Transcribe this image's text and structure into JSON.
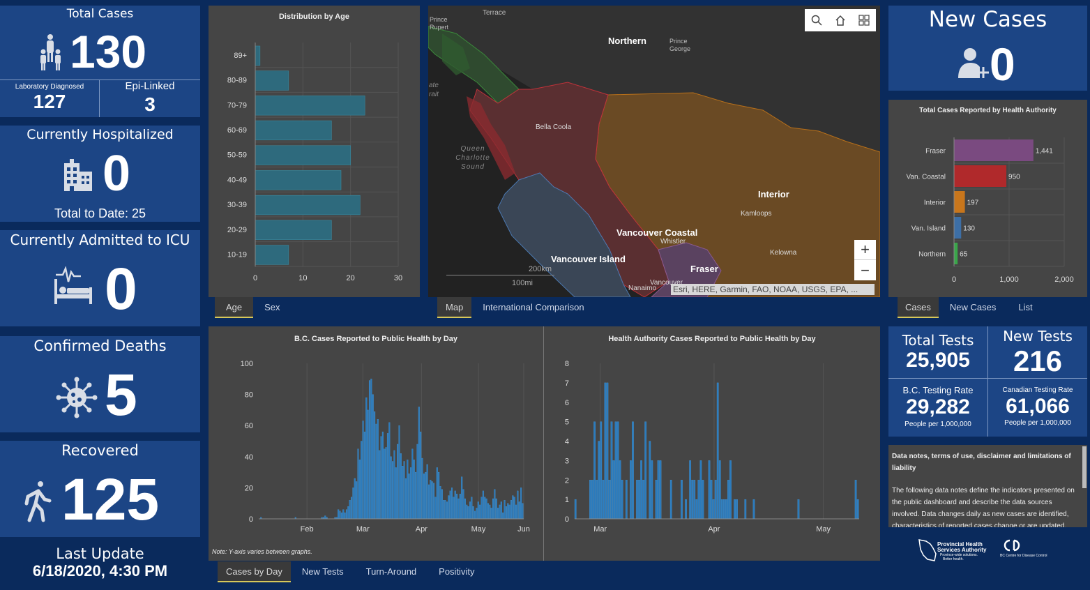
{
  "total_cases": {
    "title": "Total Cases",
    "value": "130",
    "lab_label": "Laboratory Diagnosed",
    "lab_value": "127",
    "epi_label": "Epi-Linked",
    "epi_value": "3"
  },
  "hospitalized": {
    "title": "Currently Hospitalized",
    "value": "0",
    "total_label": "Total to Date: 25"
  },
  "icu": {
    "title": "Currently Admitted to ICU",
    "value": "0"
  },
  "deaths": {
    "title": "Confirmed Deaths",
    "value": "5"
  },
  "recovered": {
    "title": "Recovered",
    "value": "125"
  },
  "last_update": {
    "label": "Last Update",
    "value": "6/18/2020, 4:30 PM"
  },
  "age_chart": {
    "title": "Distribution by Age",
    "chart_data": {
      "type": "bar",
      "orientation": "horizontal",
      "categories": [
        "89+",
        "80-89",
        "70-79",
        "60-69",
        "50-59",
        "40-49",
        "30-39",
        "20-29",
        "10-19"
      ],
      "values": [
        1,
        7,
        23,
        16,
        20,
        18,
        22,
        16,
        7
      ],
      "xticks": [
        "0",
        "10",
        "20",
        "30"
      ],
      "xlim": [
        0,
        30
      ]
    }
  },
  "age_tabs": [
    "Age",
    "Sex"
  ],
  "map": {
    "labels": {
      "terrace": "Terrace",
      "prince_rupert": "Prince Rupert",
      "northern": "Northern",
      "prince_george": "Prince George",
      "bella_coola": "Bella Coola",
      "queen_charlotte": "Queen Charlotte Sound",
      "strait": "ate rait",
      "interior": "Interior",
      "kamloops": "Kamloops",
      "vancouver_coastal": "Vancouver Coastal",
      "whistler": "Whistler",
      "vancouver_island": "Vancouver Island",
      "kelowna": "Kelowna",
      "fraser": "Fraser",
      "nanaimo": "Nanaimo",
      "vancouver": "Vancouver"
    },
    "scale_km": "200km",
    "scale_mi": "100mi",
    "attribution": "Esri, HERE, Garmin, FAO, NOAA, USGS, EPA, ...",
    "zoom_in": "+",
    "zoom_out": "−"
  },
  "map_tabs": [
    "Map",
    "International Comparison"
  ],
  "new_cases": {
    "title": "New Cases",
    "value": "0"
  },
  "ha_chart": {
    "title": "Total Cases Reported by Health Authority",
    "chart_data": {
      "type": "bar",
      "orientation": "horizontal",
      "categories": [
        "Fraser",
        "Van. Coastal",
        "Interior",
        "Van. Island",
        "Northern"
      ],
      "values": [
        1441,
        950,
        197,
        130,
        65
      ],
      "value_labels": [
        "1,441",
        "950",
        "197",
        "130",
        "65"
      ],
      "colors": [
        "#7a4a80",
        "#b0292b",
        "#c8761c",
        "#3d6fa6",
        "#3aa64a"
      ],
      "xticks": [
        "0",
        "1,000",
        "2,000"
      ],
      "xlim": [
        0,
        2000
      ]
    }
  },
  "ha_tabs": [
    "Cases",
    "New Cases",
    "List"
  ],
  "bc_daily": {
    "title": "B.C. Cases Reported to Public Health by Day",
    "note": "Note: Y-axis varies between graphs.",
    "chart_data": {
      "type": "bar",
      "yticks": [
        "0",
        "20",
        "40",
        "60",
        "80",
        "100"
      ],
      "ylim": [
        0,
        100
      ],
      "xticks": [
        "Feb",
        "Mar",
        "Apr",
        "May",
        "Jun"
      ],
      "values": [
        0,
        1,
        0,
        0,
        0,
        0,
        0,
        0,
        0,
        0,
        0,
        0,
        0,
        0,
        0,
        0,
        0,
        0,
        0,
        0,
        0,
        0,
        1,
        0,
        0,
        0,
        0,
        0,
        0,
        0,
        0,
        0,
        0,
        0,
        0,
        0,
        0,
        0,
        1,
        1,
        2,
        1,
        0,
        0,
        0,
        0,
        1,
        1,
        6,
        5,
        4,
        6,
        4,
        6,
        8,
        12,
        14,
        20,
        26,
        24,
        45,
        38,
        50,
        63,
        56,
        78,
        70,
        89,
        90,
        80,
        69,
        61,
        64,
        44,
        53,
        56,
        45,
        46,
        55,
        62,
        40,
        37,
        44,
        33,
        48,
        60,
        42,
        34,
        37,
        26,
        38,
        29,
        33,
        45,
        38,
        30,
        48,
        72,
        56,
        39,
        29,
        30,
        35,
        22,
        25,
        24,
        23,
        14,
        33,
        30,
        21,
        19,
        12,
        12,
        11,
        15,
        18,
        20,
        14,
        18,
        16,
        13,
        16,
        27,
        19,
        13,
        9,
        8,
        11,
        14,
        8,
        5,
        7,
        11,
        9,
        14,
        18,
        14,
        13,
        10,
        9,
        7,
        13,
        19,
        13,
        7,
        9,
        11,
        4,
        12,
        8,
        10,
        9,
        12,
        15,
        14,
        9,
        18,
        11,
        20,
        10
      ]
    }
  },
  "ha_daily": {
    "title": "Health Authority Cases Reported to Public Health by Day",
    "chart_data": {
      "type": "bar",
      "yticks": [
        "0",
        "1",
        "2",
        "3",
        "4",
        "5",
        "6",
        "7",
        "8"
      ],
      "ylim": [
        0,
        8
      ],
      "xticks": [
        "Mar",
        "Apr",
        "May"
      ],
      "values": [
        1,
        0,
        0,
        0,
        0,
        0,
        0,
        2,
        2,
        5,
        2,
        4,
        5,
        2,
        7,
        7,
        2,
        5,
        3,
        5,
        5,
        3,
        2,
        0,
        2,
        0,
        3,
        5,
        0,
        2,
        2,
        3,
        2,
        5,
        0,
        4,
        3,
        0,
        2,
        3,
        3,
        0,
        0,
        0,
        0,
        2,
        0,
        0,
        0,
        0,
        2,
        0,
        1,
        0,
        3,
        2,
        2,
        1,
        2,
        3,
        2,
        0,
        0,
        3,
        2,
        1,
        2,
        7,
        3,
        1,
        1,
        1,
        2,
        3,
        0,
        1,
        1,
        0,
        0,
        0,
        1,
        0,
        0,
        0,
        1,
        0,
        0,
        0,
        0,
        0,
        0,
        0,
        0,
        0,
        0,
        0,
        0,
        0,
        0,
        0,
        0,
        0,
        0,
        0,
        0,
        1,
        0,
        0,
        0,
        0,
        0,
        0,
        0,
        0,
        0,
        0,
        0,
        0,
        0,
        0,
        0,
        0,
        0,
        0,
        0,
        0,
        0,
        0,
        0,
        0,
        0,
        0,
        2,
        1
      ]
    }
  },
  "daily_tabs": [
    "Cases by Day",
    "New Tests",
    "Turn-Around",
    "Positivity"
  ],
  "tests": {
    "total_label": "Total Tests",
    "total_value": "25,905",
    "new_label": "New Tests",
    "new_value": "216",
    "bc_rate_label": "B.C. Testing Rate",
    "bc_rate_value": "29,282",
    "bc_rate_sub": "People per 1,000,000",
    "ca_rate_label": "Canadian Testing Rate",
    "ca_rate_value": "61,066",
    "ca_rate_sub": "People per 1,000,000"
  },
  "notes": {
    "title": "Data notes, terms of use, disclaimer and limitations of liability",
    "body": "The following data notes define the indicators presented on the public dashboard and describe the data sources involved. Data changes daily as new cases are identified, characteristics of reported cases change or are updated,"
  },
  "logos": {
    "phsa_line1": "Provincial Health",
    "phsa_line2": "Services Authority",
    "phsa_tag1": "Province-wide solutions.",
    "phsa_tag2": "Better health.",
    "bccdc_text": "BC Centre for Disease Control"
  }
}
